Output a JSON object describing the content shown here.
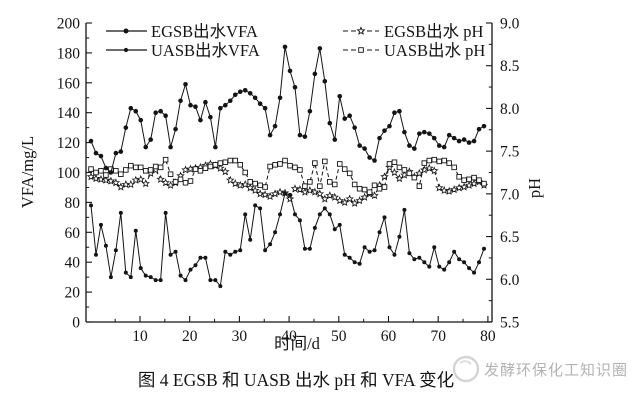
{
  "figure": {
    "caption": "图 4  EGSB 和 UASB 出水 pH 和 VFA 变化",
    "watermark": "发酵环保化工知识圈"
  },
  "colors": {
    "line": "#141414",
    "background": "#ffffff",
    "watermark": "#b3b3b3"
  },
  "chart_data": {
    "type": "line",
    "xlabel": "时间/d",
    "ylabel_left": "VFA/mg/L",
    "ylabel_right": "pH",
    "x_range": [
      0,
      80
    ],
    "x_ticks": [
      10,
      20,
      30,
      40,
      50,
      60,
      70,
      80
    ],
    "x_minor_step": 5,
    "y_left_range": [
      0,
      200
    ],
    "y_left_ticks": [
      0,
      20,
      40,
      60,
      80,
      100,
      120,
      140,
      160,
      180,
      200
    ],
    "y_right_range": [
      5.5,
      9.0
    ],
    "y_right_ticks": [
      5.5,
      6.0,
      6.5,
      7.0,
      7.5,
      8.0,
      8.5,
      9.0
    ],
    "grid": false,
    "legend_position": "top-inside",
    "x_start": 1,
    "x_step": 1,
    "n_points": 80,
    "series": [
      {
        "name": "EGSB出水VFA",
        "axis": "left",
        "line": "solid",
        "marker": "filled-circle",
        "values": [
          121,
          113,
          111,
          103,
          100,
          113,
          114,
          130,
          143,
          141,
          135,
          117,
          122,
          140,
          141,
          138,
          117,
          129,
          148,
          159,
          145,
          144,
          135,
          147,
          137,
          117,
          143,
          145,
          148,
          152,
          154,
          155,
          153,
          150,
          146,
          143,
          125,
          131,
          150,
          184,
          168,
          157,
          125,
          124,
          141,
          166,
          183,
          161,
          133,
          122,
          151,
          136,
          138,
          130,
          118,
          116,
          110,
          108,
          123,
          128,
          131,
          140,
          141,
          127,
          118,
          116,
          126,
          127,
          126,
          123,
          118,
          117,
          125,
          123,
          121,
          122,
          120,
          121,
          129,
          131
        ]
      },
      {
        "name": "UASB出水VFA",
        "axis": "left",
        "line": "solid",
        "marker": "filled-circle-small",
        "values": [
          78,
          45,
          65,
          51,
          30,
          48,
          73,
          33,
          30,
          61,
          36,
          31,
          30,
          28,
          28,
          73,
          45,
          47,
          31,
          28,
          35,
          38,
          43,
          43,
          28,
          28,
          24,
          47,
          45,
          47,
          48,
          72,
          55,
          78,
          76,
          48,
          52,
          60,
          72,
          86,
          85,
          72,
          68,
          49,
          49,
          63,
          72,
          76,
          72,
          62,
          65,
          45,
          43,
          40,
          39,
          50,
          47,
          48,
          60,
          70,
          50,
          45,
          57,
          75,
          46,
          42,
          43,
          40,
          37,
          50,
          37,
          35,
          40,
          47,
          42,
          40,
          36,
          33,
          40,
          49
        ]
      },
      {
        "name": "EGSB出水 pH",
        "axis": "right",
        "line": "dashed",
        "marker": "open-star",
        "values": [
          7.2,
          7.18,
          7.17,
          7.16,
          7.15,
          7.13,
          7.08,
          7.11,
          7.11,
          7.16,
          7.17,
          7.12,
          7.24,
          7.28,
          7.17,
          7.13,
          7.1,
          7.13,
          7.21,
          7.28,
          7.29,
          7.3,
          7.31,
          7.33,
          7.35,
          7.33,
          7.3,
          7.26,
          7.16,
          7.12,
          7.1,
          7.11,
          7.07,
          7.04,
          7.0,
          6.99,
          6.97,
          7.0,
          7.02,
          7.01,
          6.94,
          7.06,
          7.05,
          7.02,
          7.04,
          7.02,
          7.0,
          6.94,
          6.98,
          6.96,
          6.92,
          6.9,
          6.94,
          6.89,
          6.92,
          6.96,
          7.0,
          6.98,
          7.1,
          7.2,
          7.31,
          7.25,
          7.18,
          7.22,
          7.26,
          7.2,
          7.24,
          7.28,
          7.3,
          7.27,
          7.07,
          7.04,
          7.03,
          7.05,
          7.07,
          7.08,
          7.1,
          7.12,
          7.14,
          7.1
        ]
      },
      {
        "name": "UASB出水 pH",
        "axis": "right",
        "line": "dashed",
        "marker": "open-square",
        "values": [
          7.29,
          7.25,
          7.27,
          7.22,
          7.29,
          7.27,
          7.23,
          7.28,
          7.33,
          7.31,
          7.31,
          7.27,
          7.28,
          7.32,
          7.31,
          7.4,
          7.23,
          7.14,
          7.17,
          7.13,
          7.15,
          7.29,
          7.27,
          7.3,
          7.32,
          7.34,
          7.36,
          7.37,
          7.39,
          7.39,
          7.34,
          7.25,
          7.14,
          7.12,
          7.1,
          7.08,
          7.32,
          7.34,
          7.35,
          7.39,
          7.33,
          7.31,
          7.28,
          7.09,
          7.14,
          7.36,
          7.09,
          7.38,
          7.14,
          7.11,
          7.35,
          7.29,
          7.24,
          7.11,
          7.06,
          7.05,
          7.02,
          7.1,
          7.06,
          7.08,
          7.35,
          7.37,
          7.31,
          7.28,
          7.24,
          7.19,
          7.09,
          7.36,
          7.39,
          7.4,
          7.38,
          7.39,
          7.36,
          7.31,
          7.2,
          7.16,
          7.17,
          7.19,
          7.16,
          7.12
        ]
      }
    ]
  }
}
